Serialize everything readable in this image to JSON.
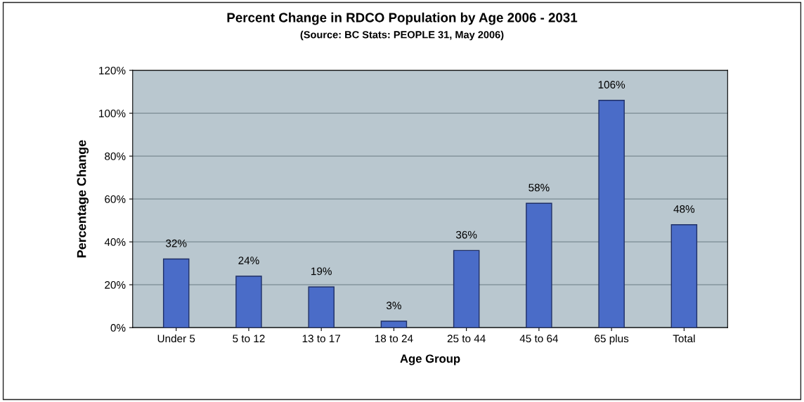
{
  "chart_data": {
    "type": "bar",
    "title": "Percent Change in RDCO Population by Age 2006 - 2031",
    "subtitle": "(Source: BC Stats: PEOPLE 31, May 2006)",
    "xlabel": "Age Group",
    "ylabel": "Percentage Change",
    "categories": [
      "Under 5",
      "5 to 12",
      "13 to 17",
      "18 to 24",
      "25 to 44",
      "45 to 64",
      "65 plus",
      "Total"
    ],
    "values": [
      32,
      24,
      19,
      3,
      36,
      58,
      106,
      48
    ],
    "value_labels": [
      "32%",
      "24%",
      "19%",
      "3%",
      "36%",
      "58%",
      "106%",
      "48%"
    ],
    "color": "#4a6cc8",
    "ylim": [
      0,
      120
    ],
    "yticks": [
      {
        "value": 0,
        "label": "0%"
      },
      {
        "value": 20,
        "label": "20%"
      },
      {
        "value": 40,
        "label": "40%"
      },
      {
        "value": 60,
        "label": "60%"
      },
      {
        "value": 80,
        "label": "80%"
      },
      {
        "value": 100,
        "label": "100%"
      },
      {
        "value": 120,
        "label": "120%"
      }
    ],
    "grid": "y",
    "legend": false
  }
}
